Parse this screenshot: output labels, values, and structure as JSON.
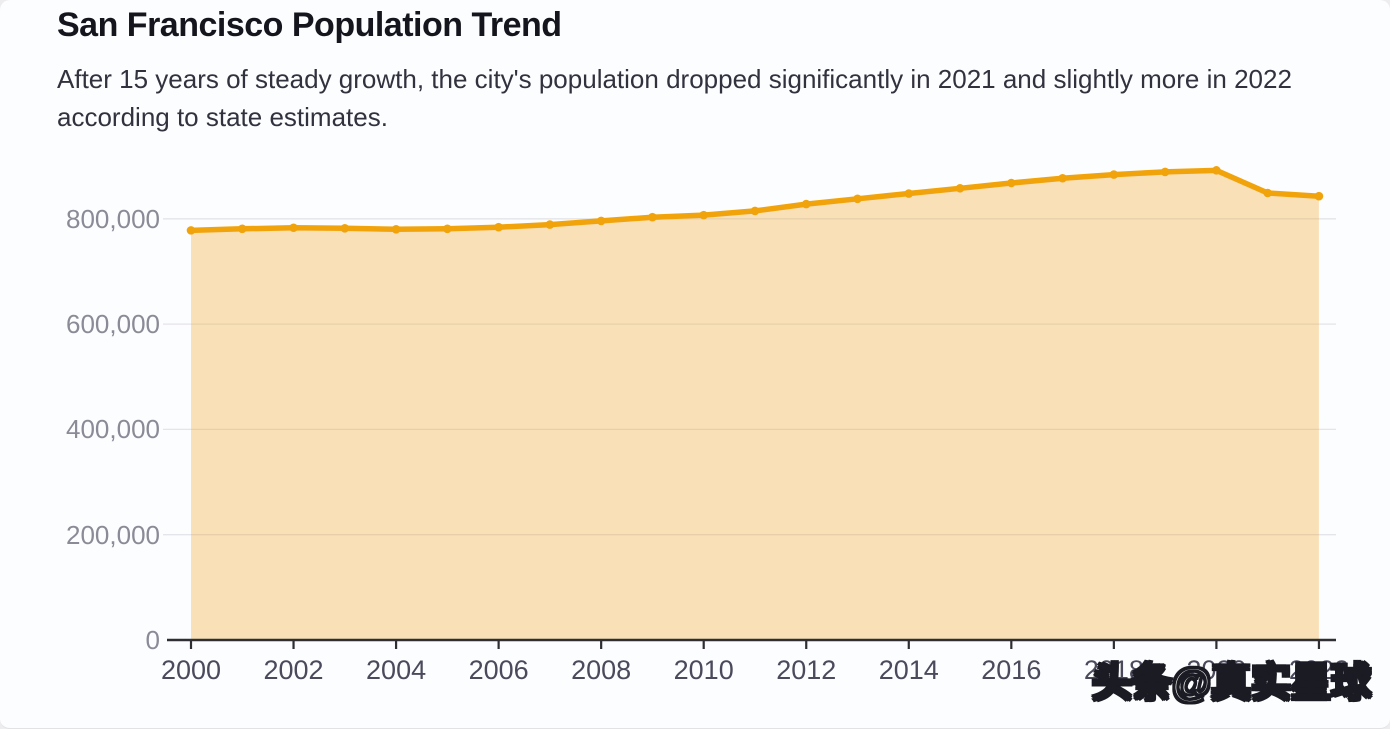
{
  "header": {
    "title": "San Francisco Population Trend",
    "subtitle": "After 15 years of steady growth, the city's population dropped significantly in 2021 and slightly more in 2022 according to state estimates."
  },
  "watermark": {
    "text": "头条@真实星球"
  },
  "colors": {
    "background": "#fcfdfe",
    "title": "#15151e",
    "subtitle": "#32323f",
    "line": "#f1a30c",
    "area_fill": "rgba(243,166,35,0.32)",
    "grid": "#e4e4ea",
    "axis": "#2e2e33",
    "y_tick_label": "#8b8b97",
    "x_tick_label": "#4a4a5c"
  },
  "chart_data": {
    "type": "area",
    "title": "San Francisco Population Trend",
    "series_name": "Population",
    "x": [
      2000,
      2001,
      2002,
      2003,
      2004,
      2005,
      2006,
      2007,
      2008,
      2009,
      2010,
      2011,
      2012,
      2013,
      2014,
      2015,
      2016,
      2017,
      2018,
      2019,
      2020,
      2021,
      2022
    ],
    "values": [
      778000,
      781000,
      783000,
      782000,
      780000,
      781000,
      784000,
      789000,
      796000,
      803000,
      807000,
      815000,
      828000,
      838000,
      848000,
      858000,
      868000,
      877000,
      884000,
      889000,
      892000,
      849000,
      843000
    ],
    "xlabel": "",
    "ylabel": "",
    "ylim": [
      0,
      900000
    ],
    "y_ticks": [
      {
        "value": 0,
        "label": "0"
      },
      {
        "value": 200000,
        "label": "200,000"
      },
      {
        "value": 400000,
        "label": "400,000"
      },
      {
        "value": 600000,
        "label": "600,000"
      },
      {
        "value": 800000,
        "label": "800,000"
      }
    ],
    "x_tick_years": [
      2000,
      2002,
      2004,
      2006,
      2008,
      2010,
      2012,
      2014,
      2016,
      2018,
      2020,
      2022
    ],
    "grid": "horizontal",
    "legend": "none",
    "markers": true
  }
}
